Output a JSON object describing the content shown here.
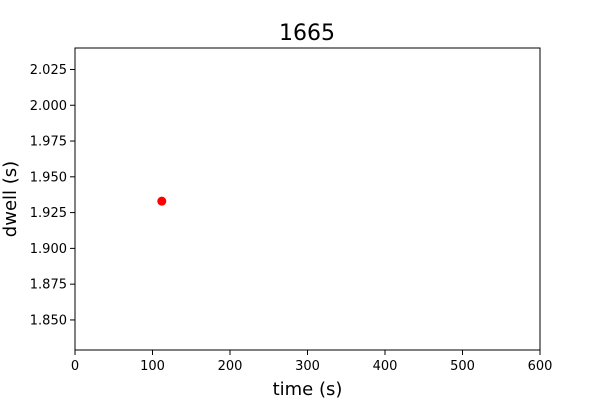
{
  "chart_data": {
    "type": "scatter",
    "title": "1665",
    "xlabel": "time (s)",
    "ylabel": "dwell (s)",
    "xlim": [
      0,
      600
    ],
    "ylim": [
      1.829,
      2.04
    ],
    "x_ticks": [
      0,
      100,
      200,
      300,
      400,
      500,
      600
    ],
    "x_tick_labels": [
      "0",
      "100",
      "200",
      "300",
      "400",
      "500",
      "600"
    ],
    "y_ticks": [
      1.85,
      1.875,
      1.9,
      1.925,
      1.95,
      1.975,
      2.0,
      2.025
    ],
    "y_tick_labels": [
      "1.850",
      "1.875",
      "1.900",
      "1.925",
      "1.950",
      "1.975",
      "2.000",
      "2.025"
    ],
    "grid": false,
    "series": [
      {
        "x": [
          112
        ],
        "y": [
          1.933
        ],
        "color": "#ff0000",
        "marker": "circle"
      }
    ]
  }
}
